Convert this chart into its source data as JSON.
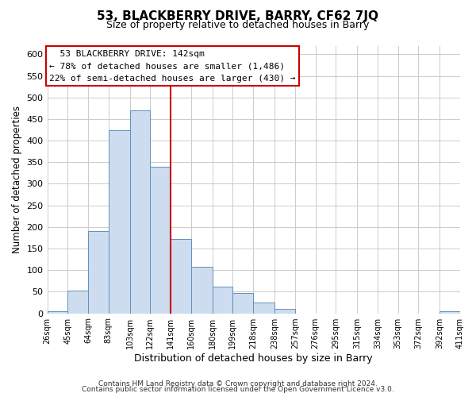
{
  "title_line1": "53, BLACKBERRY DRIVE, BARRY, CF62 7JQ",
  "title_line2": "Size of property relative to detached houses in Barry",
  "xlabel": "Distribution of detached houses by size in Barry",
  "ylabel": "Number of detached properties",
  "footer_line1": "Contains HM Land Registry data © Crown copyright and database right 2024.",
  "footer_line2": "Contains public sector information licensed under the Open Government Licence v3.0.",
  "bin_labels": [
    "26sqm",
    "45sqm",
    "64sqm",
    "83sqm",
    "103sqm",
    "122sqm",
    "141sqm",
    "160sqm",
    "180sqm",
    "199sqm",
    "218sqm",
    "238sqm",
    "257sqm",
    "276sqm",
    "295sqm",
    "315sqm",
    "334sqm",
    "353sqm",
    "372sqm",
    "392sqm",
    "411sqm"
  ],
  "bin_edges": [
    26,
    45,
    64,
    83,
    103,
    122,
    141,
    160,
    180,
    199,
    218,
    238,
    257,
    276,
    295,
    315,
    334,
    353,
    372,
    392,
    411
  ],
  "bar_heights": [
    5,
    52,
    190,
    425,
    470,
    340,
    172,
    107,
    62,
    47,
    25,
    10,
    0,
    0,
    0,
    0,
    0,
    0,
    0,
    5
  ],
  "bar_color": "#cddcee",
  "bar_edge_color": "#6090c0",
  "property_line_x": 141,
  "property_line_color": "#cc0000",
  "ylim": [
    0,
    620
  ],
  "yticks": [
    0,
    50,
    100,
    150,
    200,
    250,
    300,
    350,
    400,
    450,
    500,
    550,
    600
  ],
  "annotation_box_text_line1": "53 BLACKBERRY DRIVE: 142sqm",
  "annotation_box_text_line2": "← 78% of detached houses are smaller (1,486)",
  "annotation_box_text_line3": "22% of semi-detached houses are larger (430) →",
  "annotation_box_edge_color": "#cc0000",
  "annotation_box_bg_color": "#ffffff",
  "grid_color": "#cccccc",
  "bg_color": "#ffffff",
  "fig_bg_color": "#ffffff"
}
